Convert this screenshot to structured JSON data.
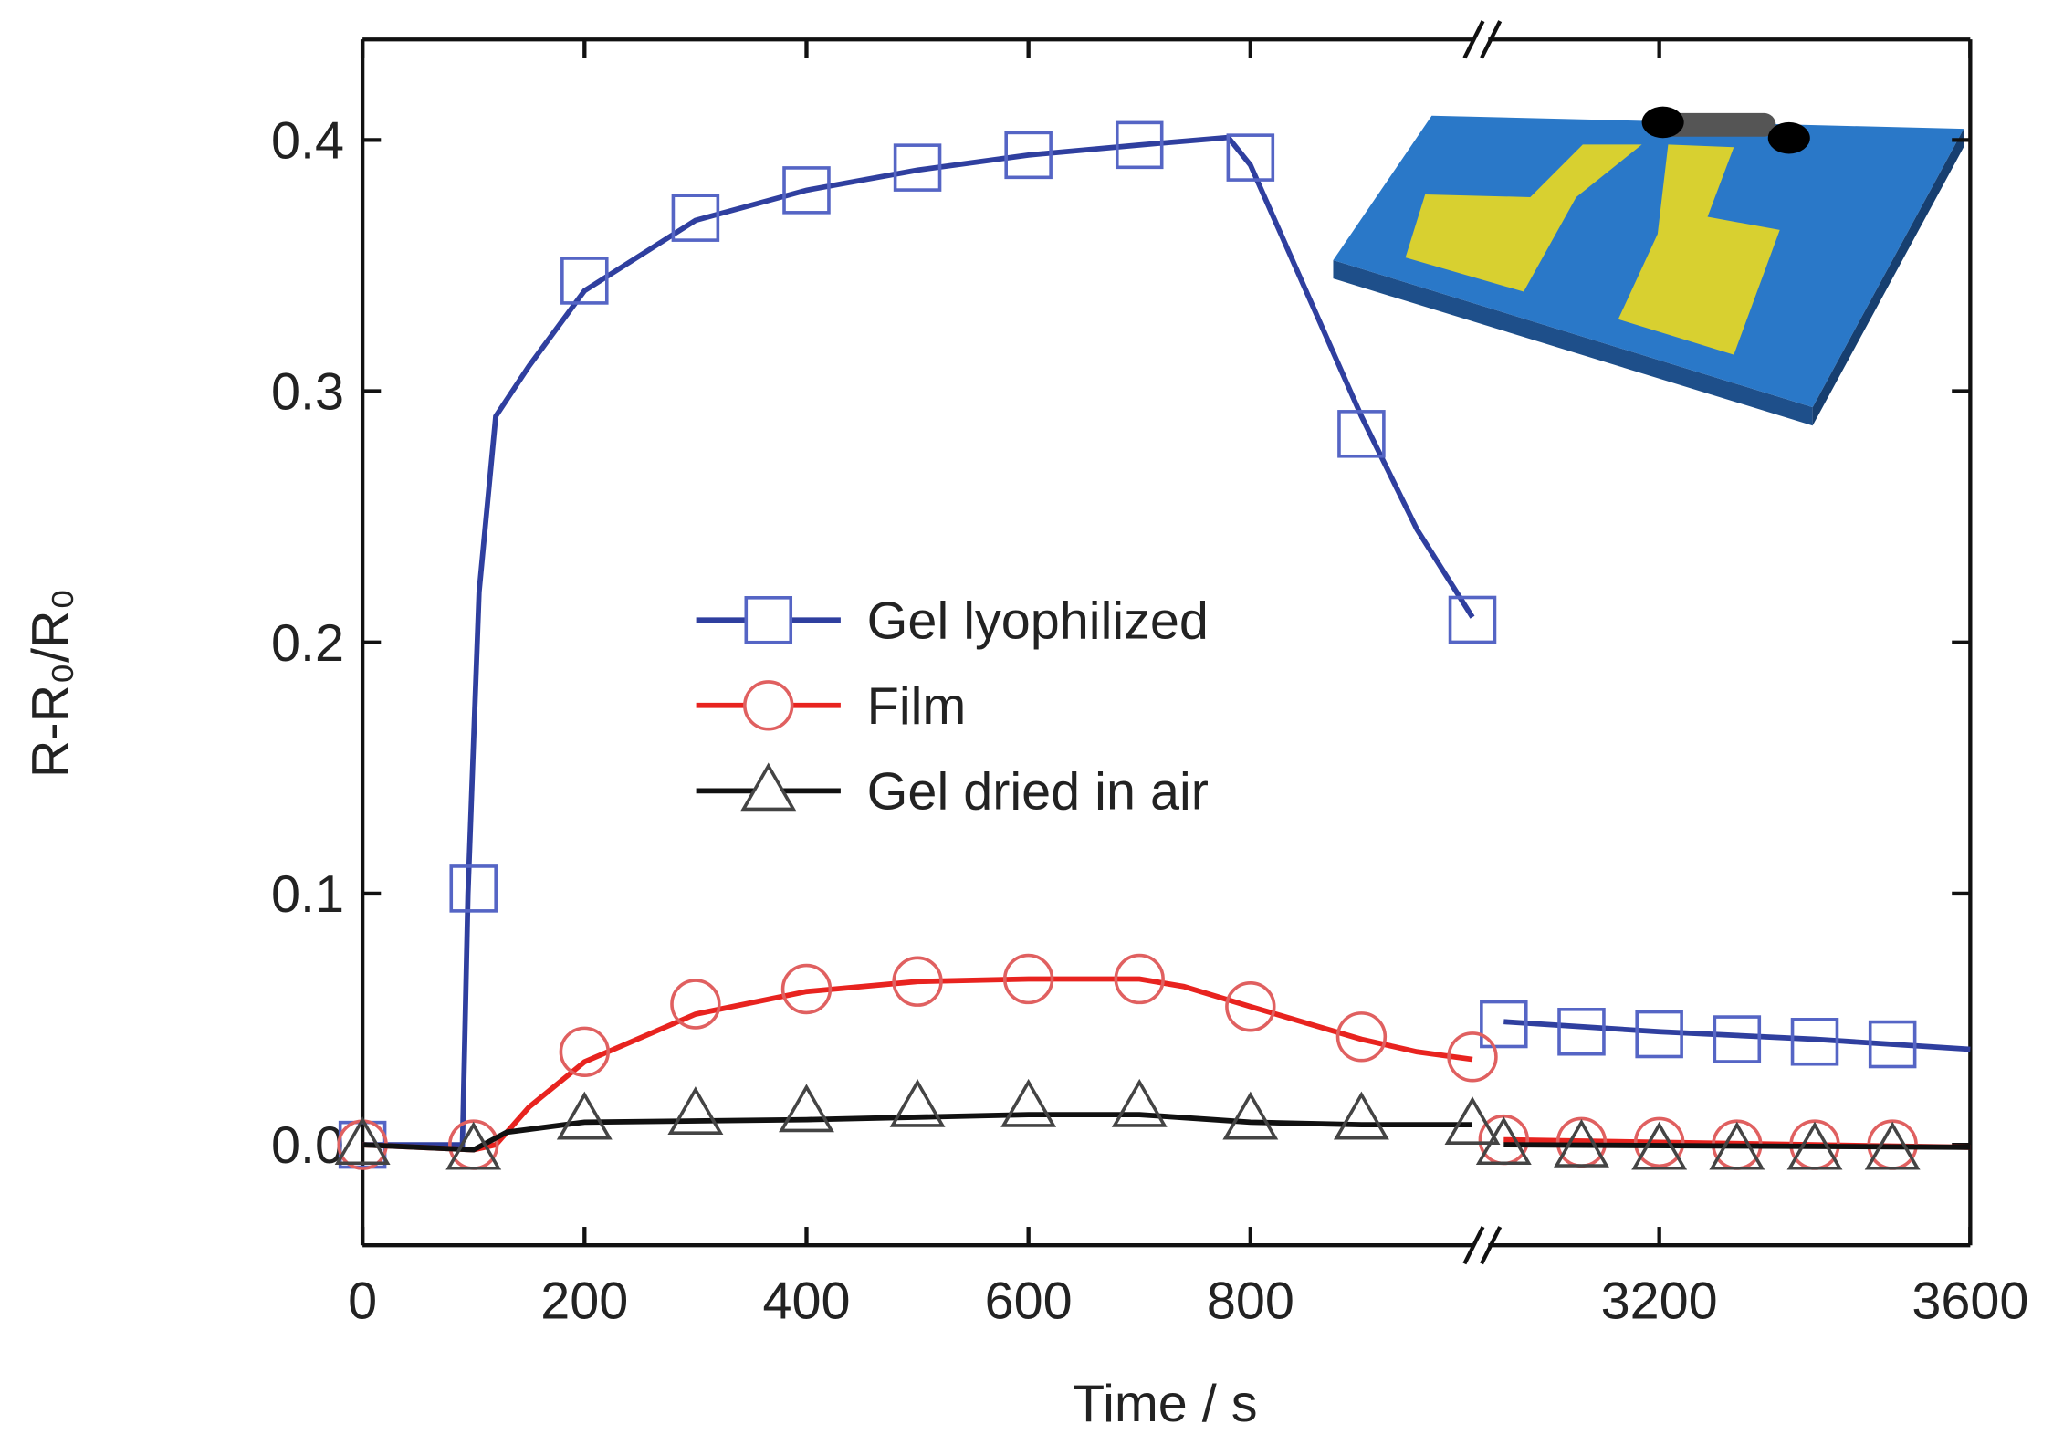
{
  "chart_data": {
    "type": "line",
    "xlabel": "Time / s",
    "ylabel": "R-R₀/R₀",
    "xlim": [
      [
        0,
        1000
      ],
      [
        2980,
        3600
      ]
    ],
    "xticks": [
      0,
      200,
      400,
      600,
      800,
      3200,
      3600
    ],
    "ylim": [
      -0.04,
      0.44
    ],
    "yticks": [
      {
        "value": 0,
        "label": "0.0"
      },
      0.1,
      0.2,
      0.3,
      0.4
    ],
    "legend": "center",
    "series": [
      {
        "name": "Gel lyophilized",
        "color": "#2f3f9f",
        "marker_color": "#5565c5",
        "marker": "square",
        "x": [
          0,
          90,
          95,
          105,
          120,
          150,
          200,
          300,
          400,
          500,
          600,
          700,
          780,
          800,
          850,
          900,
          950,
          1000,
          3000,
          3200,
          3400,
          3600
        ],
        "values": [
          0,
          0,
          0.1,
          0.22,
          0.29,
          0.31,
          0.34,
          0.368,
          0.38,
          0.388,
          0.394,
          0.398,
          0.401,
          0.39,
          0.34,
          0.29,
          0.245,
          0.21,
          0.049,
          0.045,
          0.042,
          0.038
        ],
        "markers": {
          "x": [
            0,
            100,
            200,
            300,
            400,
            500,
            600,
            700,
            800,
            900,
            1000,
            3000,
            3100,
            3200,
            3300,
            3400,
            3500
          ],
          "values": [
            0,
            0.102,
            0.344,
            0.369,
            0.38,
            0.389,
            0.394,
            0.398,
            0.393,
            0.283,
            0.209,
            0.048,
            0.045,
            0.044,
            0.042,
            0.041,
            0.04
          ]
        }
      },
      {
        "name": "Film",
        "color": "#e8231f",
        "marker_color": "#e06060",
        "marker": "circle",
        "x": [
          0,
          100,
          120,
          150,
          200,
          300,
          400,
          500,
          600,
          700,
          740,
          800,
          900,
          950,
          1000,
          3000,
          3600
        ],
        "values": [
          0,
          -0.002,
          0,
          0.015,
          0.033,
          0.052,
          0.061,
          0.065,
          0.066,
          0.066,
          0.063,
          0.055,
          0.042,
          0.037,
          0.034,
          0.002,
          -0.001
        ],
        "markers": {
          "x": [
            0,
            100,
            200,
            300,
            400,
            500,
            600,
            700,
            800,
            900,
            1000,
            3000,
            3100,
            3200,
            3300,
            3400,
            3500
          ],
          "values": [
            0,
            0,
            0.037,
            0.056,
            0.062,
            0.065,
            0.066,
            0.066,
            0.055,
            0.043,
            0.035,
            0.002,
            0.001,
            0.001,
            0,
            0,
            0
          ]
        }
      },
      {
        "name": "Gel dried in air",
        "color": "#111111",
        "marker_color": "#444444",
        "marker": "triangle",
        "x": [
          0,
          100,
          130,
          200,
          400,
          600,
          700,
          800,
          900,
          1000,
          3000,
          3600
        ],
        "values": [
          0,
          -0.002,
          0.005,
          0.009,
          0.01,
          0.012,
          0.012,
          0.009,
          0.008,
          0.008,
          0,
          -0.001
        ],
        "markers": {
          "x": [
            0,
            100,
            200,
            300,
            400,
            500,
            600,
            700,
            800,
            900,
            1000,
            3000,
            3100,
            3200,
            3300,
            3400,
            3500
          ],
          "values": [
            0,
            -0.002,
            0.01,
            0.012,
            0.013,
            0.015,
            0.015,
            0.015,
            0.01,
            0.01,
            0.008,
            0,
            -0.001,
            -0.002,
            -0.002,
            -0.002,
            -0.002
          ]
        }
      }
    ]
  }
}
